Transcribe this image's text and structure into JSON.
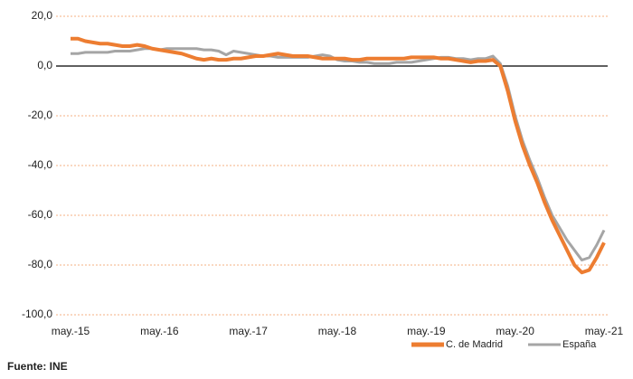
{
  "chart_data": {
    "type": "line",
    "categories": [
      "may.-15",
      null,
      null,
      null,
      null,
      null,
      null,
      null,
      null,
      null,
      null,
      null,
      "may.-16",
      null,
      null,
      null,
      null,
      null,
      null,
      null,
      null,
      null,
      null,
      null,
      "may.-17",
      null,
      null,
      null,
      null,
      null,
      null,
      null,
      null,
      null,
      null,
      null,
      "may.-18",
      null,
      null,
      null,
      null,
      null,
      null,
      null,
      null,
      null,
      null,
      null,
      "may.-19",
      null,
      null,
      null,
      null,
      null,
      null,
      null,
      null,
      null,
      null,
      null,
      "may.-20",
      null,
      null,
      null,
      null,
      null,
      null,
      null,
      null,
      null,
      null,
      null,
      "may.-21"
    ],
    "series": [
      {
        "name": "C. de Madrid",
        "color": "#ed7d31",
        "values": [
          11,
          11,
          10,
          9.5,
          9,
          9,
          8.5,
          8,
          8,
          8.5,
          8,
          7,
          6.5,
          6,
          5.5,
          5,
          4,
          3,
          2.5,
          3,
          2.5,
          2.5,
          3,
          3,
          3.5,
          4,
          4,
          4.5,
          5,
          4.5,
          4,
          4,
          4,
          3.5,
          3,
          3,
          3,
          3,
          2.5,
          2.5,
          3,
          3,
          3,
          3,
          3,
          3,
          3.5,
          3.5,
          3.5,
          3.5,
          3,
          3,
          2.5,
          2,
          1.5,
          2,
          2,
          2.5,
          0,
          -10,
          -22,
          -32,
          -40,
          -47,
          -55,
          -62,
          -68,
          -74,
          -80,
          -83,
          -82,
          -77,
          -71
        ]
      },
      {
        "name": "España",
        "color": "#a5a5a5",
        "values": [
          5,
          5,
          5.5,
          5.5,
          5.5,
          5.5,
          6,
          6,
          6,
          6.5,
          7,
          7,
          6.5,
          7,
          7,
          7,
          7,
          7,
          6.5,
          6.5,
          6,
          4.5,
          6,
          5.5,
          5,
          4.5,
          4,
          4,
          3.5,
          3.5,
          3.5,
          3.5,
          3.5,
          4,
          4.5,
          4,
          2.5,
          2,
          2,
          1.5,
          1.5,
          1,
          1,
          1,
          1.5,
          1.5,
          1.5,
          2,
          2.5,
          3,
          3.5,
          3.5,
          3,
          3,
          2.5,
          3,
          3,
          4,
          1,
          -8,
          -20,
          -30,
          -38,
          -45,
          -53,
          -60,
          -65,
          -70,
          -74,
          -78,
          -77,
          -72,
          -66
        ]
      }
    ],
    "ylim": [
      -100,
      20
    ],
    "yticks": [
      {
        "value": -100,
        "label": "-100,0"
      },
      {
        "value": -80,
        "label": "-80,0"
      },
      {
        "value": -60,
        "label": "-60,0"
      },
      {
        "value": -40,
        "label": "-40,0"
      },
      {
        "value": -20,
        "label": "-20,0"
      },
      {
        "value": 0,
        "label": "0,0"
      },
      {
        "value": 20,
        "label": "20,0"
      }
    ],
    "grid": true,
    "legend": "bottom-right",
    "source": "Fuente: INE"
  }
}
